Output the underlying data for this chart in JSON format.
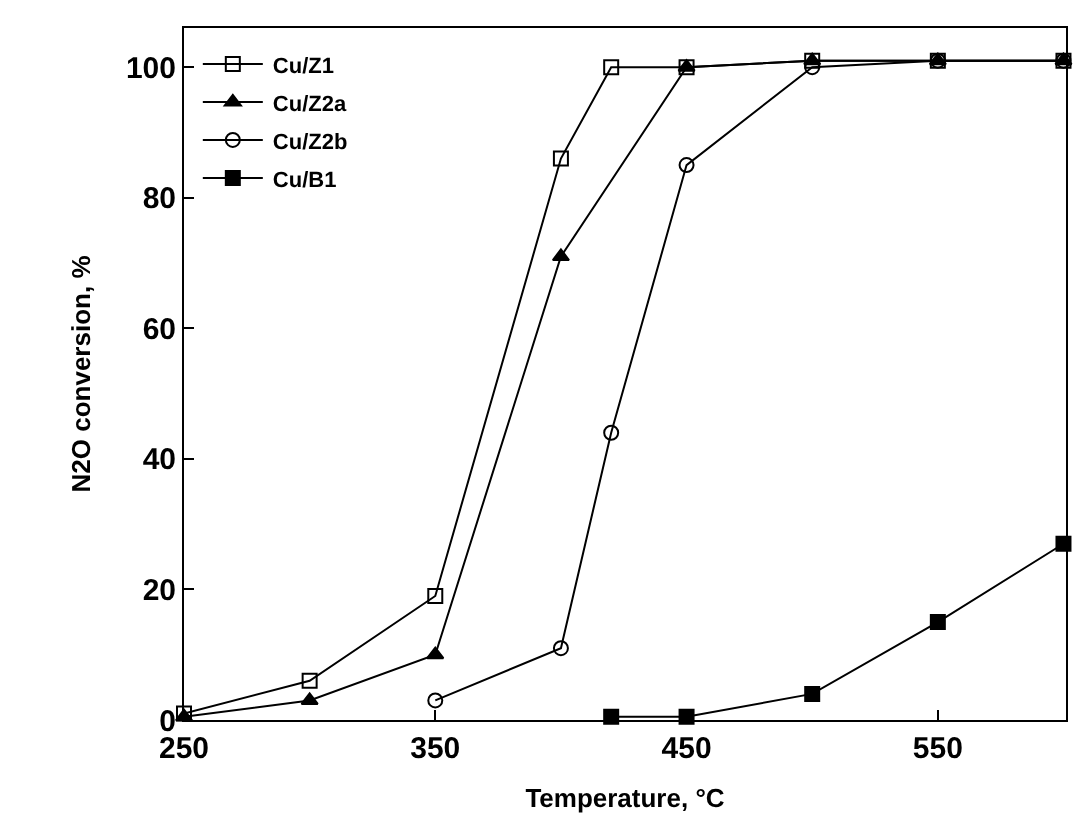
{
  "chart_data": {
    "type": "line",
    "xlabel": "Temperature, °C",
    "ylabel": "N2O conversion, %",
    "xlim": [
      250,
      601
    ],
    "xticks": [
      250,
      350,
      450,
      550
    ],
    "ylim": [
      0,
      106
    ],
    "yticks": [
      0,
      20,
      40,
      60,
      80,
      100
    ],
    "grid": false,
    "legend": "top left",
    "line_style": "solid",
    "series": [
      {
        "name": "Cu/Z1",
        "color": "#000000",
        "marker": "square-open",
        "x": [
          250,
          300,
          350,
          400,
          420,
          450,
          500,
          550,
          600
        ],
        "values": [
          1,
          6,
          19,
          86,
          100,
          100,
          101,
          101,
          101
        ]
      },
      {
        "name": "Cu/Z2a",
        "color": "#000000",
        "marker": "triangle",
        "x": [
          250,
          300,
          350,
          400,
          450,
          500,
          550,
          600
        ],
        "values": [
          0.5,
          3,
          10,
          71,
          100,
          101,
          101,
          101
        ]
      },
      {
        "name": "Cu/Z2b",
        "color": "#000000",
        "marker": "circle-open",
        "x": [
          350,
          400,
          420,
          450,
          500,
          550,
          600
        ],
        "values": [
          3,
          11,
          44,
          85,
          100,
          101,
          101
        ]
      },
      {
        "name": "Cu/B1",
        "color": "#000000",
        "marker": "square",
        "x": [
          420,
          450,
          500,
          550,
          600
        ],
        "values": [
          0.5,
          0.5,
          4,
          15,
          27
        ]
      }
    ]
  }
}
